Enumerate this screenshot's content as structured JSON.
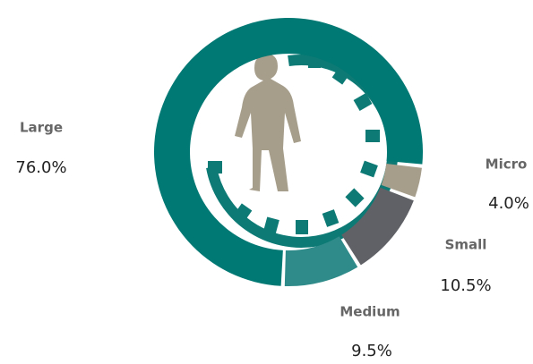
{
  "chart_data": {
    "type": "donut",
    "categories": [
      "Micro",
      "Small",
      "Medium",
      "Large"
    ],
    "values": [
      4.0,
      10.5,
      9.5,
      76.0
    ],
    "value_labels": [
      "4.0%",
      "10.5%",
      "9.5%",
      "76.0%"
    ],
    "colors": [
      "#a69d8b",
      "#5f6166",
      "#2f8b89",
      "#007873"
    ]
  }
}
